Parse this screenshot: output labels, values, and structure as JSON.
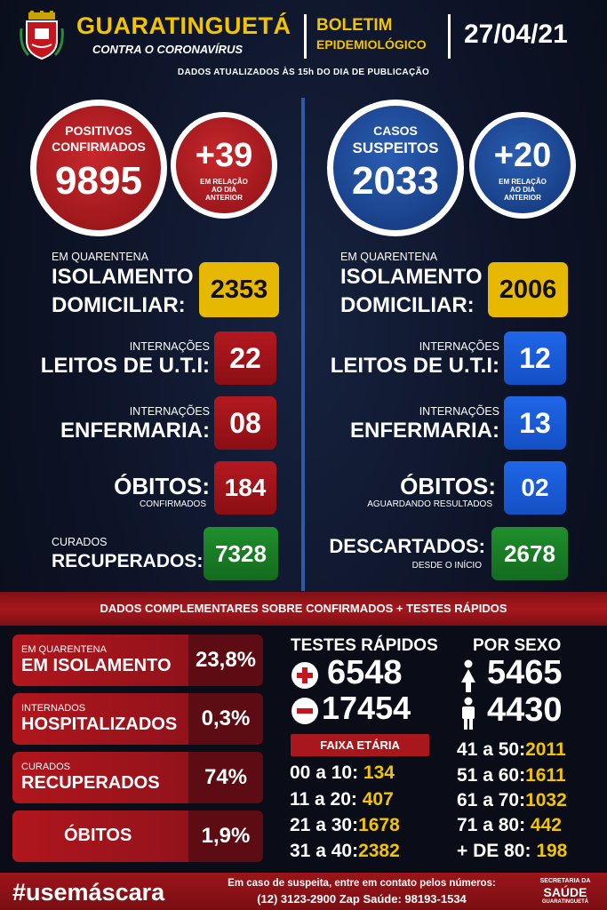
{
  "header": {
    "city": "GUARATINGUETÁ",
    "tagline": "CONTRA O CORONAVÍRUS",
    "bulletin_line1": "BOLETIM",
    "bulletin_line2": "EPIDEMIOLÓGICO",
    "date": "27/04/21",
    "updated": "DADOS ATUALIZADOS ÀS 15h DO DIA DE PUBLICAÇÃO"
  },
  "left": {
    "circle_l1": "POSITIVOS",
    "circle_l2": "CONFIRMADOS",
    "circle_value": "9895",
    "delta_value": "+39",
    "delta_l1": "EM RELAÇÃO",
    "delta_l2": "AO DIA",
    "delta_l3": "ANTERIOR",
    "iso_small": "EM QUARENTENA",
    "iso_l1": "ISOLAMENTO",
    "iso_l2": "DOMICILIAR:",
    "iso_value": "2353",
    "uti_small": "INTERNAÇÕES",
    "uti_label": "LEITOS DE U.T.I:",
    "uti_value": "22",
    "enf_small": "INTERNAÇÕES",
    "enf_label": "ENFERMARIA:",
    "enf_value": "08",
    "obitos_label": "ÓBITOS:",
    "obitos_small": "CONFIRMADOS",
    "obitos_value": "184",
    "cur_small": "CURADOS",
    "cur_label": "RECUPERADOS:",
    "cur_value": "7328"
  },
  "right": {
    "circle_l1": "CASOS",
    "circle_l2": "SUSPEITOS",
    "circle_value": "2033",
    "delta_value": "+20",
    "delta_l1": "EM RELAÇÃO",
    "delta_l2": "AO DIA",
    "delta_l3": "ANTERIOR",
    "iso_small": "EM QUARENTENA",
    "iso_l1": "ISOLAMENTO",
    "iso_l2": "DOMICILIAR:",
    "iso_value": "2006",
    "uti_small": "INTERNAÇÕES",
    "uti_label": "LEITOS DE U.T.I:",
    "uti_value": "12",
    "enf_small": "INTERNAÇÕES",
    "enf_label": "ENFERMARIA:",
    "enf_value": "13",
    "obitos_label": "ÓBITOS:",
    "obitos_small": "AGUARDANDO RESULTADOS",
    "obitos_value": "02",
    "desc_label": "DESCARTADOS:",
    "desc_small": "DESDE O INÍCIO",
    "desc_value": "2678"
  },
  "band": "DADOS COMPLEMENTARES SOBRE CONFIRMADOS + TESTES RÁPIDOS",
  "percent": [
    {
      "small": "EM QUARENTENA",
      "label": "EM ISOLAMENTO",
      "value": "23,8%"
    },
    {
      "small": "INTERNADOS",
      "label": "HOSPITALIZADOS",
      "value": "0,3%"
    },
    {
      "small": "CURADOS",
      "label": "RECUPERADOS",
      "value": "74%"
    },
    {
      "small": "",
      "label": "ÓBITOS",
      "value": "1,9%"
    }
  ],
  "tests": {
    "title": "TESTES RÁPIDOS",
    "positive": "6548",
    "negative": "17454"
  },
  "sex": {
    "title": "POR SEXO",
    "female": "5465",
    "male": "4430"
  },
  "age": {
    "title": "FAIXA ETÁRIA",
    "left": [
      {
        "label": "00 a 10:",
        "value": "134"
      },
      {
        "label": "11 a 20:",
        "value": "407"
      },
      {
        "label": "21 a 30:",
        "value": "1678"
      },
      {
        "label": "31 a 40:",
        "value": "2382"
      }
    ],
    "right": [
      {
        "label": "41 a 50:",
        "value": "2011"
      },
      {
        "label": "51 a 60:",
        "value": "1611"
      },
      {
        "label": "61 a 70:",
        "value": "1032"
      },
      {
        "label": "71 a 80:",
        "value": "442"
      },
      {
        "label": "+ DE 80:",
        "value": "198"
      }
    ]
  },
  "footer": {
    "hashtag": "#usemáscara",
    "line1": "Em caso de suspeita, entre em contato pelos números:",
    "line2": "(12) 3123-2900 Zap Saúde: 98193-1534",
    "sec1": "SECRETARIA DA",
    "sec2": "SAÚDE",
    "sec3": "GUARATINGUETÁ"
  },
  "colors": {
    "red": "#b3191f",
    "blue": "#1f66e8",
    "yellow": "#e7b800",
    "green": "#1f8f2c",
    "gold_text": "#f2c400"
  }
}
